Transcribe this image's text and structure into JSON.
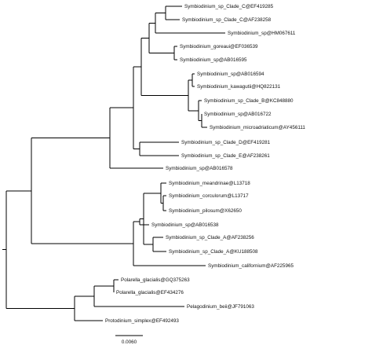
{
  "tree": {
    "leaves": [
      "Symbiodinium_sp_Clade_C@EF419285",
      "Symbiodinium_sp_Clade_C@AF238258",
      "Symbiodinium_sp@HM067611",
      "Symbiodinium_goreaui@EF036539",
      "Symbiodinium_sp@AB016595",
      "Symbiodinium_sp@AB016594",
      "Symbiodinium_kawagutii@HQ822131",
      "Symbiodinium_sp_Clade_B@KC848880",
      "Symbiodinium_sp@AB016722",
      "Symbiodinium_microadriaticum@AY456111",
      "Symbiodinium_sp_Clade_D@EF419281",
      "Symbiodinium_sp_Clade_E@AF238261",
      "Symbiodinium_sp@AB016578",
      "Symbiodinium_meandrinae@L13718",
      "Symbiodinium_corculorum@L13717",
      "Symbiodinium_pilosum@X62650",
      "Symbiodinium_sp@AB016538",
      "Symbiodinium_sp_Clade_A@AF238256",
      "Symbiodinium_sp_Clade_A@KU188508",
      "Symbiodinium_californium@AF225965",
      "Polarella_glacialis@GQ375263",
      "Polarella_glacialis@EF434276",
      "Pelagodinium_beii@JF791063",
      "Protodinium_simplex@EF492493"
    ],
    "scale_bar_label": "0.0060"
  }
}
